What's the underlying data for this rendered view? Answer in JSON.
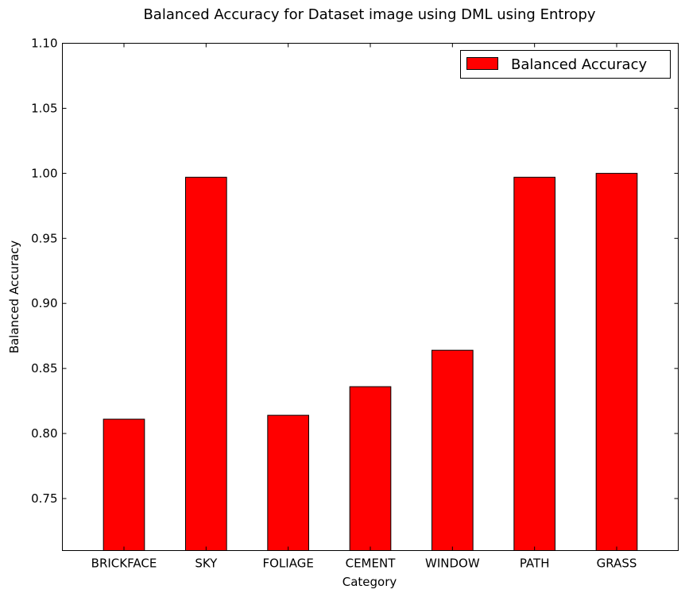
{
  "chart_data": {
    "type": "bar",
    "title": "Balanced Accuracy for Dataset image using DML using Entropy",
    "xlabel": "Category",
    "ylabel": "Balanced Accuracy",
    "categories": [
      "BRICKFACE",
      "SKY",
      "FOLIAGE",
      "CEMENT",
      "WINDOW",
      "PATH",
      "GRASS"
    ],
    "series": [
      {
        "name": "Balanced Accuracy",
        "values": [
          0.811,
          0.997,
          0.814,
          0.836,
          0.864,
          0.997,
          1.0
        ],
        "color": "#ff0000"
      }
    ],
    "ylim": [
      0.71,
      1.1
    ],
    "yticks": [
      0.75,
      0.8,
      0.85,
      0.9,
      0.95,
      1.0,
      1.05,
      1.1
    ],
    "ytick_labels": [
      "0.75",
      "0.80",
      "0.85",
      "0.90",
      "0.95",
      "1.00",
      "1.05",
      "1.10"
    ],
    "grid": false,
    "legend_position": "top-right"
  }
}
